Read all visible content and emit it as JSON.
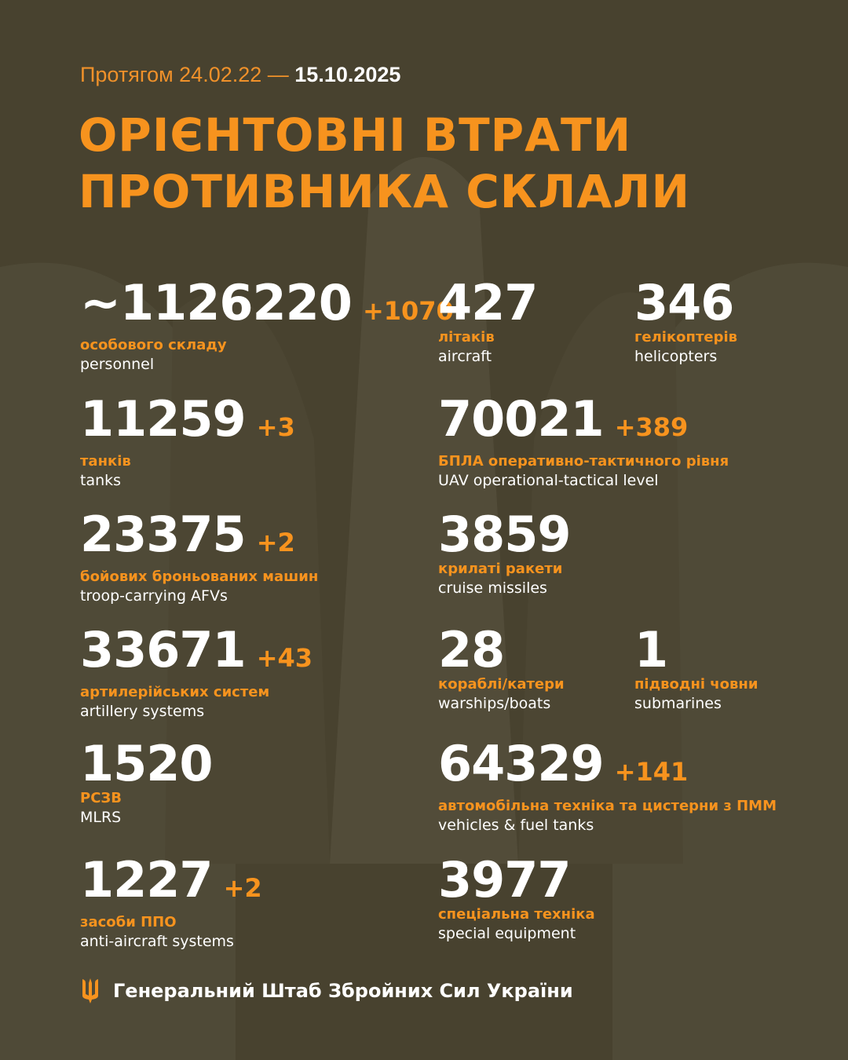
{
  "header": {
    "period_prefix": "Протягом 24.02.22 — ",
    "period_end": "15.10.2025",
    "title_line1": "ОРІЄНТОВНІ ВТРАТИ",
    "title_line2": "ПРОТИВНИКА СКЛАЛИ"
  },
  "stats": [
    {
      "value": "~1126220",
      "delta": "+1070",
      "ua": "особового складу",
      "en": "personnel"
    },
    {
      "value": "427",
      "delta": "",
      "ua": "літаків",
      "en": "aircraft"
    },
    {
      "value": "346",
      "delta": "",
      "ua": "гелікоптерів",
      "en": "helicopters"
    },
    {
      "value": "11259",
      "delta": "+3",
      "ua": "танків",
      "en": "tanks"
    },
    {
      "value": "70021",
      "delta": "+389",
      "ua": "БПЛА оперативно-тактичного рівня",
      "en": "UAV operational-tactical level"
    },
    {
      "value": "23375",
      "delta": "+2",
      "ua": "бойових броньованих машин",
      "en": "troop-carrying AFVs"
    },
    {
      "value": "3859",
      "delta": "",
      "ua": "крилаті ракети",
      "en": "cruise missiles"
    },
    {
      "value": "33671",
      "delta": "+43",
      "ua": "артилерійських систем",
      "en": "artillery systems"
    },
    {
      "value": "28",
      "delta": "",
      "ua": "кораблі/катери",
      "en": "warships/boats"
    },
    {
      "value": "1",
      "delta": "",
      "ua": "підводні човни",
      "en": "submarines"
    },
    {
      "value": "1520",
      "delta": "",
      "ua": "РСЗВ",
      "en": "MLRS"
    },
    {
      "value": "64329",
      "delta": "+141",
      "ua": "автомобільна техніка та цистерни з ПММ",
      "en": "vehicles & fuel tanks"
    },
    {
      "value": "1227",
      "delta": "+2",
      "ua": "засоби ППО",
      "en": "anti-aircraft systems"
    },
    {
      "value": "3977",
      "delta": "",
      "ua": "спеціальна техніка",
      "en": "special equipment"
    }
  ],
  "footer": {
    "text": "Генеральний Штаб Збройних Сил України",
    "icon": "trident-icon"
  },
  "colors": {
    "background": "#48422f",
    "accent": "#f7931e",
    "text": "#ffffff"
  }
}
